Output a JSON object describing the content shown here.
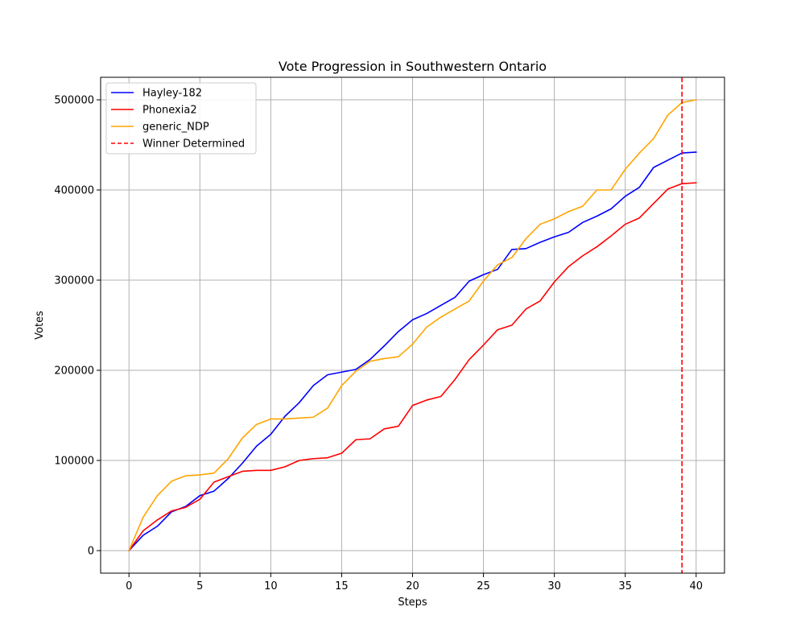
{
  "chart_data": {
    "type": "line",
    "title": "Vote Progression in Southwestern Ontario",
    "xlabel": "Steps",
    "ylabel": "Votes",
    "xlim": [
      -2,
      42
    ],
    "ylim": [
      -25000,
      525000
    ],
    "xticks": [
      0,
      5,
      10,
      15,
      20,
      25,
      30,
      35,
      40
    ],
    "yticks": [
      0,
      100000,
      200000,
      300000,
      400000,
      500000
    ],
    "grid": true,
    "legend": "top-left",
    "x": [
      0,
      1,
      2,
      3,
      4,
      5,
      6,
      7,
      8,
      9,
      10,
      11,
      12,
      13,
      14,
      15,
      16,
      17,
      18,
      19,
      20,
      21,
      22,
      23,
      24,
      25,
      26,
      27,
      28,
      29,
      30,
      31,
      32,
      33,
      34,
      35,
      36,
      37,
      38,
      39,
      40
    ],
    "series": [
      {
        "name": "Hayley-182",
        "color": "#0000ff",
        "values": [
          0,
          17000,
          27000,
          43000,
          49000,
          61000,
          66000,
          80000,
          97000,
          116000,
          129000,
          149000,
          164000,
          183000,
          195000,
          198000,
          201000,
          212000,
          227000,
          243000,
          256000,
          263000,
          272000,
          281000,
          299000,
          306000,
          312000,
          334000,
          335000,
          342000,
          348000,
          353000,
          364000,
          371000,
          379000,
          393000,
          403000,
          425000,
          433000,
          441000,
          442000
        ]
      },
      {
        "name": "Phonexia2",
        "color": "#ff0000",
        "values": [
          0,
          22000,
          34000,
          44000,
          48000,
          57000,
          76000,
          82000,
          88000,
          89000,
          89000,
          93000,
          100000,
          102000,
          103000,
          108000,
          123000,
          124000,
          135000,
          138000,
          161000,
          167000,
          171000,
          190000,
          212000,
          228000,
          245000,
          250000,
          268000,
          277000,
          298000,
          315000,
          327000,
          337000,
          349000,
          362000,
          369000,
          385000,
          401000,
          407000,
          408000
        ]
      },
      {
        "name": "generic_NDP",
        "color": "#ffa500",
        "values": [
          0,
          37000,
          61000,
          77000,
          83000,
          84000,
          86000,
          102000,
          125000,
          140000,
          146000,
          146000,
          147000,
          148000,
          158000,
          183000,
          199000,
          210000,
          213000,
          215000,
          229000,
          248000,
          259000,
          268000,
          277000,
          299000,
          317000,
          325000,
          346000,
          362000,
          368000,
          376000,
          382000,
          400000,
          400000,
          423000,
          441000,
          457000,
          483000,
          497000,
          500000
        ]
      }
    ],
    "annotations": [
      {
        "type": "vline",
        "x": 39,
        "label": "Winner Determined",
        "color": "#ff0000",
        "style": "dashed"
      }
    ]
  }
}
